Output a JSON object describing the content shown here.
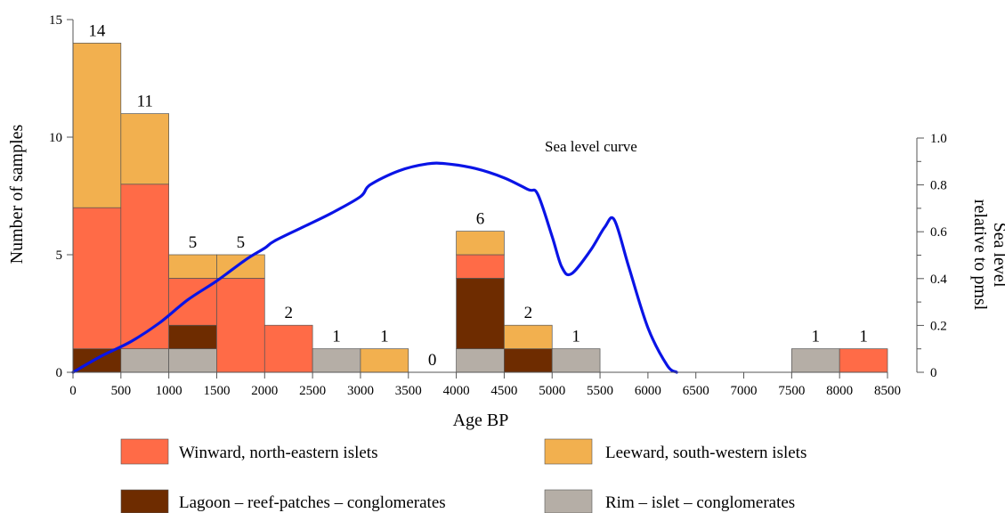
{
  "chart_data": {
    "type": "bar",
    "subtype": "stacked-histogram-with-line",
    "xlabel": "Age BP",
    "ylabel": "Number of samples",
    "y2label_line1": "Sea level",
    "y2label_line2": "relative to pmsl",
    "xlim": [
      0,
      8500
    ],
    "ylim": [
      0,
      15
    ],
    "y2lim": [
      0,
      1.0
    ],
    "x_ticks": [
      0,
      500,
      1000,
      1500,
      2000,
      2500,
      3000,
      3500,
      4000,
      4500,
      5000,
      5500,
      6000,
      6500,
      7000,
      7500,
      8000,
      8500
    ],
    "y_ticks": [
      0,
      5,
      10,
      15
    ],
    "y2_ticks": [
      "0",
      "0.2",
      "0.4",
      "0.6",
      "0.8",
      "1.0"
    ],
    "y2_tick_values": [
      0,
      0.2,
      0.4,
      0.6,
      0.8,
      1.0
    ],
    "bins": [
      [
        0,
        500
      ],
      [
        500,
        1000
      ],
      [
        1000,
        1500
      ],
      [
        1500,
        2000
      ],
      [
        2000,
        2500
      ],
      [
        2500,
        3000
      ],
      [
        3000,
        3500
      ],
      [
        3500,
        4000
      ],
      [
        4000,
        4500
      ],
      [
        4500,
        5000
      ],
      [
        5000,
        5500
      ],
      [
        5500,
        6000
      ],
      [
        6000,
        6500
      ],
      [
        6500,
        7000
      ],
      [
        7000,
        7500
      ],
      [
        7500,
        8000
      ],
      [
        8000,
        8500
      ]
    ],
    "series": [
      {
        "name": "Rim – islet – conglomerates",
        "color": "#b5aea6",
        "values": [
          0,
          1,
          1,
          0,
          0,
          1,
          0,
          0,
          1,
          0,
          1,
          0,
          0,
          0,
          0,
          1,
          0
        ]
      },
      {
        "name": "Lagoon – reef-patches – conglomerates",
        "color": "#6e2c00",
        "values": [
          1,
          0,
          1,
          0,
          0,
          0,
          0,
          0,
          3,
          1,
          0,
          0,
          0,
          0,
          0,
          0,
          0
        ]
      },
      {
        "name": "Winward, north-eastern islets",
        "color": "#ff6b47",
        "values": [
          6,
          7,
          2,
          4,
          2,
          0,
          0,
          0,
          1,
          0,
          0,
          0,
          0,
          0,
          0,
          0,
          1
        ]
      },
      {
        "name": "Leeward, south-western islets",
        "color": "#f2b04f",
        "values": [
          7,
          3,
          1,
          1,
          0,
          0,
          1,
          0,
          1,
          1,
          0,
          0,
          0,
          0,
          0,
          0,
          0
        ]
      }
    ],
    "totals": [
      14,
      11,
      5,
      5,
      2,
      1,
      1,
      0,
      6,
      2,
      1,
      null,
      null,
      null,
      null,
      1,
      1
    ],
    "line": {
      "name": "Sea level curve",
      "color": "#0a14e6",
      "x": [
        0,
        300,
        600,
        900,
        1200,
        1500,
        1800,
        2000,
        2100,
        2400,
        2700,
        3000,
        3100,
        3400,
        3700,
        3900,
        4200,
        4500,
        4750,
        4850,
        5000,
        5100,
        5200,
        5400,
        5550,
        5650,
        5800,
        6000,
        6200,
        6300
      ],
      "y": [
        0,
        0.07,
        0.13,
        0.21,
        0.31,
        0.39,
        0.48,
        0.53,
        0.56,
        0.62,
        0.68,
        0.75,
        0.8,
        0.86,
        0.89,
        0.89,
        0.87,
        0.83,
        0.78,
        0.76,
        0.58,
        0.45,
        0.42,
        0.52,
        0.62,
        0.65,
        0.45,
        0.19,
        0.03,
        0
      ]
    }
  },
  "legend": {
    "items": [
      {
        "label": "Winward, north-eastern islets",
        "color": "#ff6b47"
      },
      {
        "label": "Leeward, south-western islets",
        "color": "#f2b04f"
      },
      {
        "label": "Lagoon – reef-patches – conglomerates",
        "color": "#6e2c00"
      },
      {
        "label": "Rim – islet – conglomerates",
        "color": "#b5aea6"
      }
    ]
  }
}
